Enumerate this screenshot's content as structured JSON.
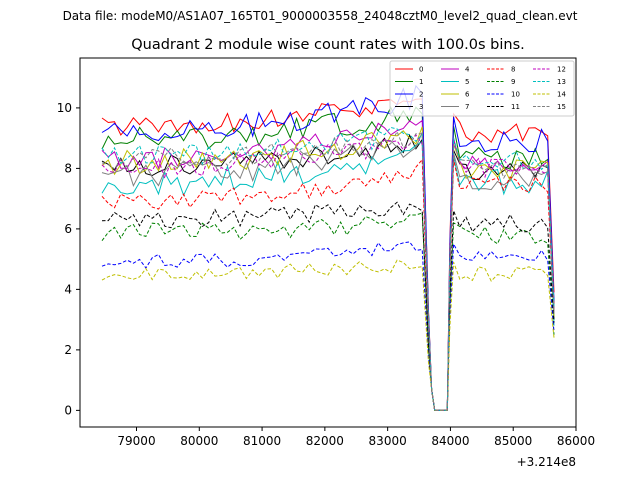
{
  "chart_data": {
    "type": "line",
    "suptitle": "Data file: modeM0/AS1A07_165T01_9000003558_24048cztM0_level2_quad_clean.evt",
    "title": "Quadrant 2 module wise count rates with 100.0s bins.",
    "xlabel": "",
    "ylabel": "",
    "x_offset_label": "+3.214e8",
    "xlim": [
      78100,
      86000
    ],
    "ylim": [
      -0.55,
      11.65
    ],
    "xticks": [
      79000,
      80000,
      81000,
      82000,
      83000,
      84000,
      85000,
      86000
    ],
    "xtick_labels": [
      "79000",
      "80000",
      "81000",
      "82000",
      "83000",
      "84000",
      "85000",
      "86000"
    ],
    "yticks": [
      0,
      2,
      4,
      6,
      8,
      10
    ],
    "ytick_labels": [
      "0",
      "2",
      "4",
      "6",
      "8",
      "10"
    ],
    "legend_position": "top-right",
    "x_start": 78450,
    "x_step": 100,
    "gap_start": 83650,
    "gap_end": 83950,
    "end_x": 85650,
    "series": [
      {
        "name": "0",
        "color": "#ff0000",
        "dash": "solid",
        "base": 9.4,
        "amp": 0.35,
        "pre_end": 10.5,
        "post_peak": 9.8,
        "post_level": 9.2,
        "end_value": 3.9
      },
      {
        "name": "1",
        "color": "#008000",
        "dash": "solid",
        "base": 9.0,
        "amp": 0.45,
        "pre_end": 10.0,
        "post_peak": 9.4,
        "post_level": 8.3,
        "end_value": 3.5
      },
      {
        "name": "2",
        "color": "#0000ff",
        "dash": "solid",
        "base": 9.2,
        "amp": 0.4,
        "pre_end": 10.6,
        "post_peak": 9.7,
        "post_level": 8.9,
        "end_value": 3.6
      },
      {
        "name": "3",
        "color": "#000000",
        "dash": "solid",
        "base": 8.1,
        "amp": 0.35,
        "pre_end": 9.0,
        "post_peak": 8.6,
        "post_level": 7.9,
        "end_value": 3.0
      },
      {
        "name": "4",
        "color": "#bf00bf",
        "dash": "solid",
        "base": 8.3,
        "amp": 0.35,
        "pre_end": 9.7,
        "post_peak": 9.0,
        "post_level": 8.1,
        "end_value": 3.3
      },
      {
        "name": "5",
        "color": "#00bfbf",
        "dash": "solid",
        "base": 7.5,
        "amp": 0.45,
        "pre_end": 8.8,
        "post_peak": 8.4,
        "post_level": 7.6,
        "end_value": 2.8
      },
      {
        "name": "6",
        "color": "#bfbf00",
        "dash": "solid",
        "base": 8.2,
        "amp": 0.4,
        "pre_end": 9.3,
        "post_peak": 8.8,
        "post_level": 7.9,
        "end_value": 3.1
      },
      {
        "name": "7",
        "color": "#808080",
        "dash": "solid",
        "base": 7.8,
        "amp": 0.4,
        "pre_end": 9.0,
        "post_peak": 8.5,
        "post_level": 7.6,
        "end_value": 3.2
      },
      {
        "name": "8",
        "color": "#ff0000",
        "dash": "dashed",
        "base": 6.9,
        "amp": 0.3,
        "pre_end": 8.2,
        "post_peak": 8.3,
        "post_level": 7.5,
        "end_value": 3.4
      },
      {
        "name": "9",
        "color": "#008000",
        "dash": "dashed",
        "base": 5.9,
        "amp": 0.3,
        "pre_end": 6.3,
        "post_peak": 6.2,
        "post_level": 5.8,
        "end_value": 2.5
      },
      {
        "name": "10",
        "color": "#0000ff",
        "dash": "dashed",
        "base": 4.9,
        "amp": 0.25,
        "pre_end": 5.6,
        "post_peak": 5.5,
        "post_level": 5.1,
        "end_value": 2.6
      },
      {
        "name": "11",
        "color": "#000000",
        "dash": "dashed",
        "base": 6.3,
        "amp": 0.3,
        "pre_end": 6.9,
        "post_peak": 6.6,
        "post_level": 6.2,
        "end_value": 2.9
      },
      {
        "name": "12",
        "color": "#bf00bf",
        "dash": "dashed",
        "base": 8.0,
        "amp": 0.35,
        "pre_end": 9.1,
        "post_peak": 8.9,
        "post_level": 8.0,
        "end_value": 3.3
      },
      {
        "name": "13",
        "color": "#00bfbf",
        "dash": "dashed",
        "base": 8.4,
        "amp": 0.35,
        "pre_end": 9.4,
        "post_peak": 9.0,
        "post_level": 8.2,
        "end_value": 3.4
      },
      {
        "name": "14",
        "color": "#bfbf00",
        "dash": "dashed",
        "base": 4.5,
        "amp": 0.25,
        "pre_end": 4.9,
        "post_peak": 4.9,
        "post_level": 4.5,
        "end_value": 2.4
      },
      {
        "name": "15",
        "color": "#808080",
        "dash": "dashed",
        "base": 8.3,
        "amp": 0.35,
        "pre_end": 9.3,
        "post_peak": 8.8,
        "post_level": 8.0,
        "end_value": 3.2
      }
    ]
  }
}
